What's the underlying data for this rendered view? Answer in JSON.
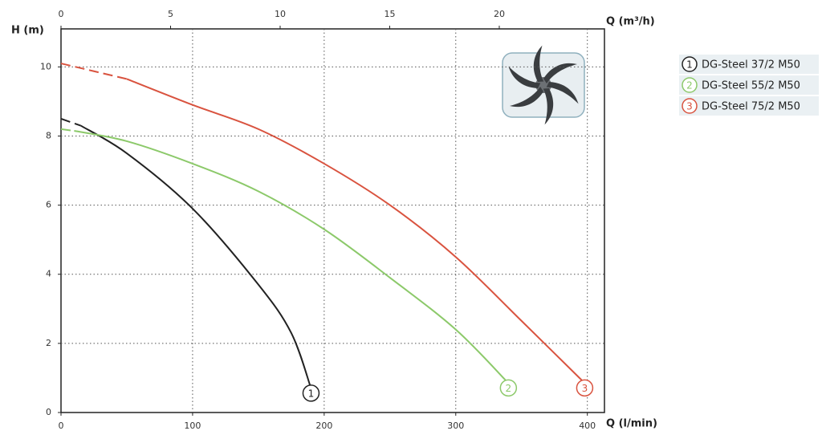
{
  "chart_data": {
    "type": "line",
    "y_label": "H (m)",
    "x_label": "Q (l/min)",
    "x2_label": "Q (m³/h)",
    "xlim": [
      0,
      413
    ],
    "xticks": [
      0,
      100,
      200,
      300,
      400
    ],
    "x2lim": [
      0,
      24.8
    ],
    "x2ticks": [
      0,
      5,
      10,
      15,
      20
    ],
    "ylim": [
      0,
      11.1
    ],
    "yticks": [
      0,
      2,
      4,
      6,
      8,
      10
    ],
    "grid": true,
    "dashed_start": true,
    "legend": "right",
    "series": [
      {
        "name": "DG-Steel 37/2 M50",
        "marker_label": "1",
        "color": "#222222",
        "x": [
          0,
          15,
          50,
          100,
          150,
          175,
          190
        ],
        "values": [
          8.5,
          8.3,
          7.5,
          5.9,
          3.7,
          2.3,
          0.7
        ]
      },
      {
        "name": "DG-Steel 55/2 M50",
        "marker_label": "2",
        "color": "#8cc96a",
        "x": [
          0,
          10,
          50,
          100,
          150,
          200,
          250,
          300,
          340
        ],
        "values": [
          8.2,
          8.15,
          7.85,
          7.2,
          6.4,
          5.3,
          3.9,
          2.4,
          0.85
        ]
      },
      {
        "name": "DG-Steel 75/2 M50",
        "marker_label": "3",
        "color": "#d9533f",
        "x": [
          0,
          50,
          100,
          150,
          200,
          250,
          300,
          350,
          398
        ],
        "values": [
          10.1,
          9.65,
          8.9,
          8.2,
          7.2,
          6.0,
          4.5,
          2.65,
          0.85
        ]
      }
    ]
  }
}
